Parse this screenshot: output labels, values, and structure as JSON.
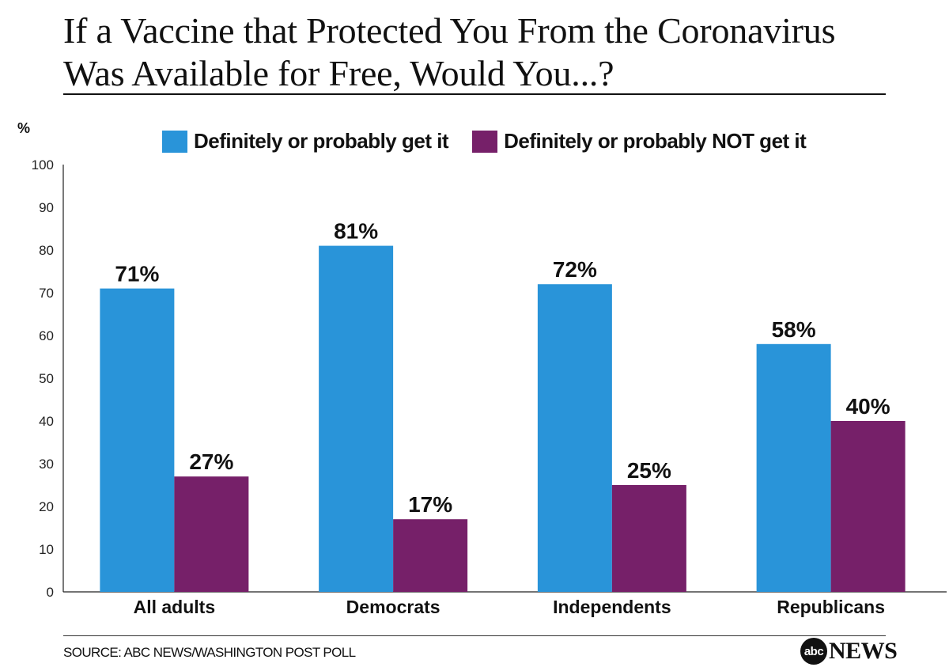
{
  "chart_data": {
    "type": "bar",
    "title": "If a Vaccine that Protected You From the Coronavirus Was Available for Free, Would You...?",
    "ylabel": "%",
    "xlabel": "",
    "ylim": [
      0,
      100
    ],
    "yticks": [
      0,
      10,
      20,
      30,
      40,
      50,
      60,
      70,
      80,
      90,
      100
    ],
    "categories": [
      "All adults",
      "Democrats",
      "Independents",
      "Republicans"
    ],
    "series": [
      {
        "name": "Definitely or probably get it",
        "color": "#2994d9",
        "values": [
          71,
          81,
          72,
          58
        ],
        "labels": [
          "71%",
          "81%",
          "72%",
          "58%"
        ]
      },
      {
        "name": "Definitely or probably NOT get it",
        "color": "#762069",
        "values": [
          27,
          17,
          25,
          40
        ],
        "labels": [
          "27%",
          "17%",
          "25%",
          "40%"
        ]
      }
    ],
    "legend_position": "top",
    "grid": false
  },
  "footer": {
    "source": "SOURCE: ABC NEWS/WASHINGTON POST POLL",
    "logo_mark": "abc",
    "logo_text": "NEWS"
  }
}
